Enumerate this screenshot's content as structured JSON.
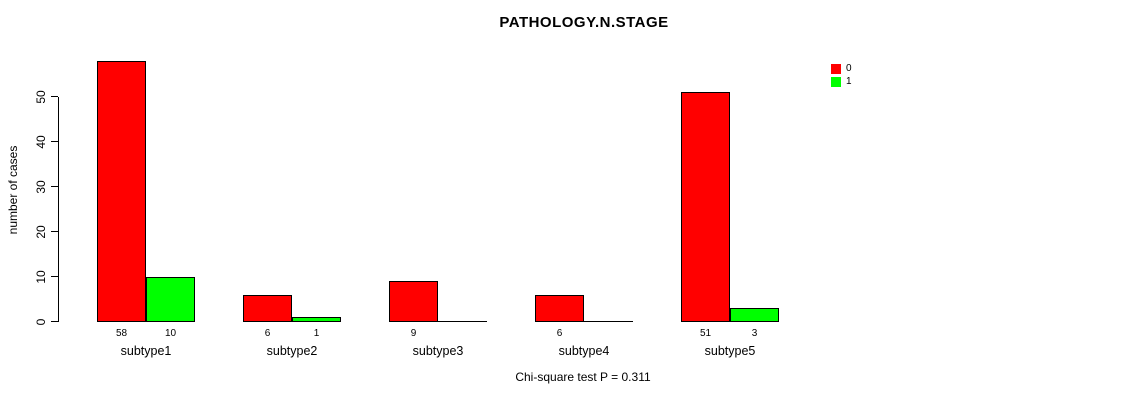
{
  "chart_data": {
    "type": "bar",
    "title": "PATHOLOGY.N.STAGE",
    "xlabel": "",
    "ylabel": "number of cases",
    "categories": [
      "subtype1",
      "subtype2",
      "subtype3",
      "subtype4",
      "subtype5"
    ],
    "series": [
      {
        "name": "0",
        "color": "#FF0000",
        "values": [
          58,
          6,
          9,
          6,
          51
        ]
      },
      {
        "name": "1",
        "color": "#00FF00",
        "values": [
          10,
          1,
          0,
          0,
          3
        ]
      }
    ],
    "bar_count_labels": [
      [
        "58",
        "10"
      ],
      [
        "6",
        "1"
      ],
      [
        "9",
        ""
      ],
      [
        "6",
        ""
      ],
      [
        "51",
        "3"
      ]
    ],
    "yticks": [
      0,
      10,
      20,
      30,
      40,
      50
    ],
    "ylim": [
      0,
      58
    ],
    "grid": false,
    "legend_position": "top-right",
    "legend_entries": [
      {
        "label": "0",
        "color": "#FF0000"
      },
      {
        "label": "1",
        "color": "#00FF00"
      }
    ],
    "annotation": "Chi-square test P = 0.311"
  },
  "colors": {
    "bar_red": "#FF0000",
    "bar_green": "#00FF00",
    "axis": "#000000",
    "background": "#FFFFFF"
  }
}
